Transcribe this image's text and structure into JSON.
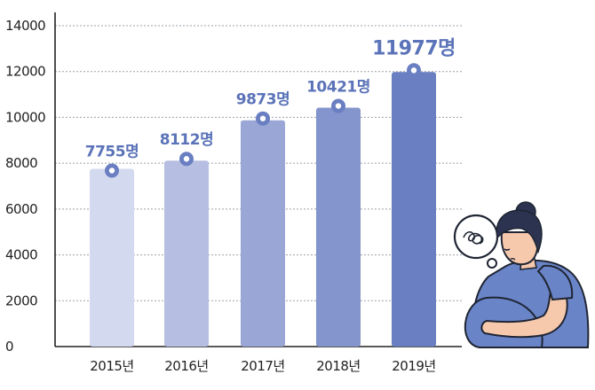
{
  "chart_data": {
    "type": "bar",
    "title": "",
    "xlabel": "",
    "ylabel": "",
    "categories": [
      "2015년",
      "2016년",
      "2017년",
      "2018년",
      "2019년"
    ],
    "values": [
      7755,
      8112,
      9873,
      10421,
      11977
    ],
    "data_labels": [
      "7755명",
      "8112명",
      "9873명",
      "10421명",
      "11977명"
    ],
    "yticks": [
      "0",
      "2000",
      "4000",
      "6000",
      "8000",
      "10000",
      "12000",
      "14000"
    ],
    "ylim": [
      0,
      14000
    ],
    "grid": true,
    "bar_colors": [
      "#d3d9ee",
      "#b6bfe2",
      "#99a6d6",
      "#8494cc",
      "#6a7fc1"
    ],
    "marker_color": "#6a7fc1",
    "label_color": "#5b73b8"
  },
  "illustration": {
    "icon": "pregnant-woman-worried-icon"
  }
}
